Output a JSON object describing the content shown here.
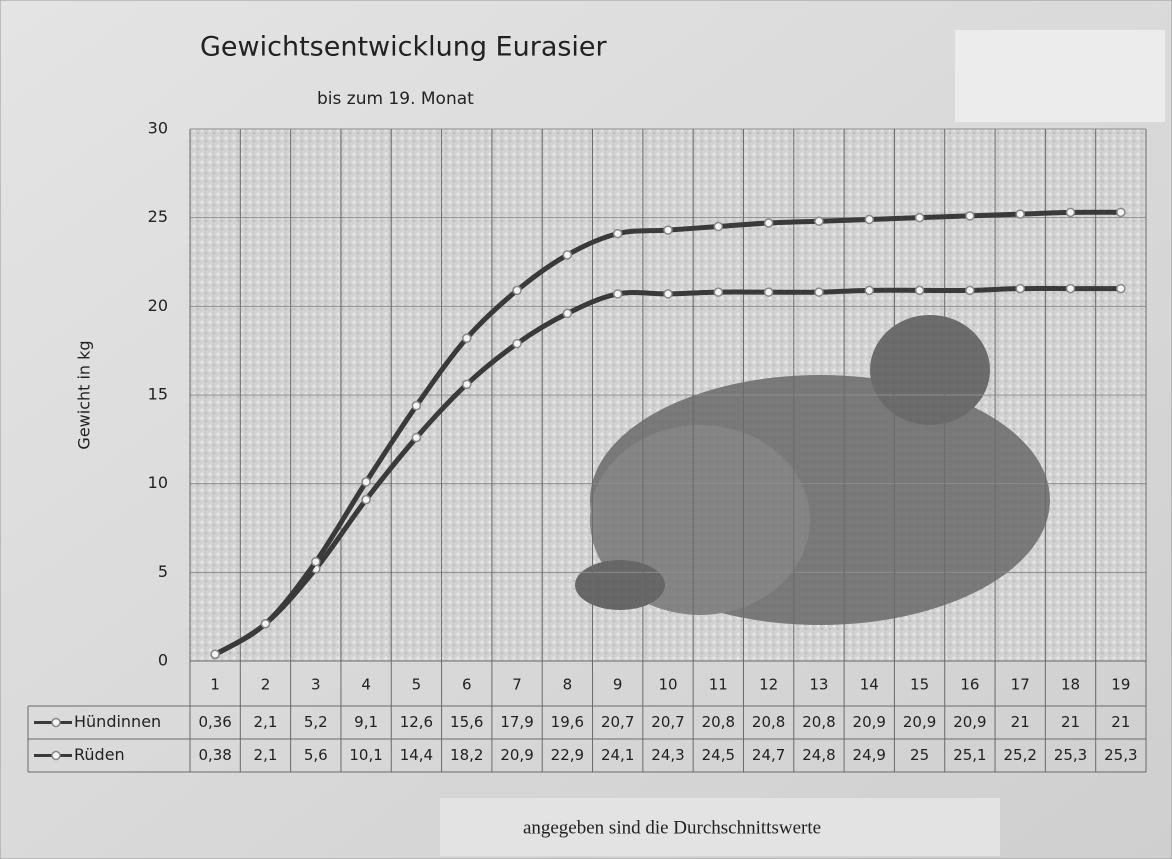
{
  "chart_data": {
    "type": "line",
    "title": "Gewichtsentwicklung Eurasier",
    "subtitle": "bis zum 19. Monat",
    "y_label": "Gewicht in kg",
    "footnote": "angegeben sind die Durchschnittswerte",
    "categories": [
      "1",
      "2",
      "3",
      "4",
      "5",
      "6",
      "7",
      "8",
      "9",
      "10",
      "11",
      "12",
      "13",
      "14",
      "15",
      "16",
      "17",
      "18",
      "19"
    ],
    "series": [
      {
        "name": "Hündinnen",
        "color": "#3a3a3a",
        "values": [
          0.36,
          2.1,
          5.2,
          9.1,
          12.6,
          15.6,
          17.9,
          19.6,
          20.7,
          20.7,
          20.8,
          20.8,
          20.8,
          20.9,
          20.9,
          20.9,
          21,
          21,
          21
        ],
        "value_labels": [
          "0,36",
          "2,1",
          "5,2",
          "9,1",
          "12,6",
          "15,6",
          "17,9",
          "19,6",
          "20,7",
          "20,7",
          "20,8",
          "20,8",
          "20,8",
          "20,9",
          "20,9",
          "20,9",
          "21",
          "21",
          "21"
        ]
      },
      {
        "name": "Rüden",
        "color": "#3a3a3a",
        "values": [
          0.38,
          2.1,
          5.6,
          10.1,
          14.4,
          18.2,
          20.9,
          22.9,
          24.1,
          24.3,
          24.5,
          24.7,
          24.8,
          24.9,
          25,
          25.1,
          25.2,
          25.3,
          25.3
        ],
        "value_labels": [
          "0,38",
          "2,1",
          "5,6",
          "10,1",
          "14,4",
          "18,2",
          "20,9",
          "22,9",
          "24,1",
          "24,3",
          "24,5",
          "24,7",
          "24,8",
          "24,9",
          "25",
          "25,1",
          "25,2",
          "25,3",
          "25,3"
        ]
      }
    ],
    "ylim": [
      0,
      30
    ],
    "yticks": [
      0,
      5,
      10,
      15,
      20,
      25,
      30
    ],
    "grid": true,
    "data_table": true
  }
}
